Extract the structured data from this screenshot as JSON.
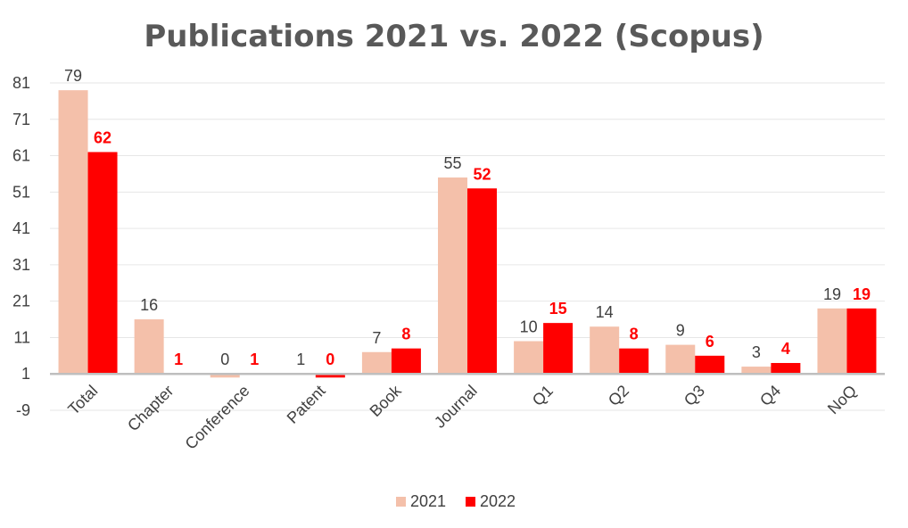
{
  "chart_data": {
    "type": "bar",
    "title": "Publications 2021 vs. 2022 (Scopus)",
    "categories": [
      "Total",
      "Chapter",
      "Conference",
      "Patent",
      "Book",
      "Journal",
      "Q1",
      "Q2",
      "Q3",
      "Q4",
      "NoQ"
    ],
    "series": [
      {
        "name": "2021",
        "color": "#f4c0aa",
        "values": [
          79,
          16,
          0,
          1,
          7,
          55,
          10,
          14,
          9,
          3,
          19
        ]
      },
      {
        "name": "2022",
        "color": "#ff0000",
        "values": [
          62,
          1,
          1,
          0,
          8,
          52,
          15,
          8,
          6,
          4,
          19
        ]
      }
    ],
    "ylim": [
      -9,
      81
    ],
    "yticks": [
      -9,
      1,
      11,
      21,
      31,
      41,
      51,
      61,
      71,
      81
    ],
    "baseline": 1,
    "grid": true,
    "legend_position": "bottom-center",
    "xlabel": "",
    "ylabel": ""
  }
}
